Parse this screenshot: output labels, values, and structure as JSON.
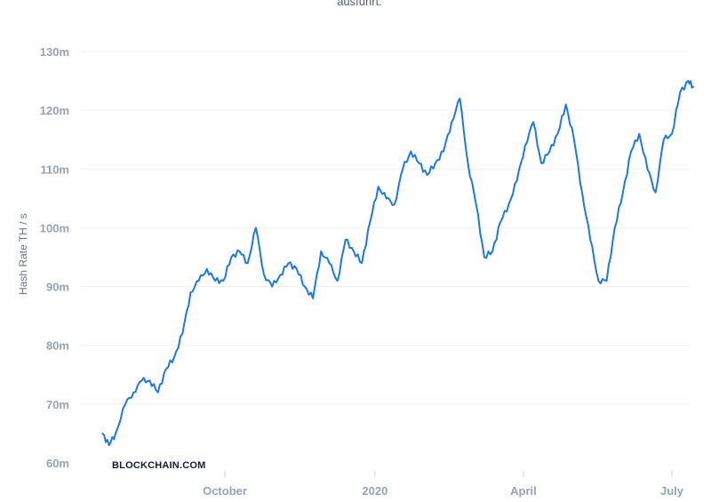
{
  "chart_data": {
    "type": "line",
    "subtitle": "ausführt.",
    "ylabel": "Hash Rate TH / s",
    "xlabel": "",
    "watermark": "BLOCKCHAIN.COM",
    "yticks": [
      "60m",
      "70m",
      "80m",
      "90m",
      "100m",
      "110m",
      "120m",
      "130m"
    ],
    "ylim": [
      60,
      130
    ],
    "xticks": [
      {
        "label": "October",
        "date": "2019-10-01"
      },
      {
        "label": "2020",
        "date": "2020-01-01"
      },
      {
        "label": "April",
        "date": "2020-04-01"
      },
      {
        "label": "July",
        "date": "2020-07-01"
      }
    ],
    "grid": true,
    "line_color": "#1f78e0",
    "series": [
      {
        "x": [
          "2019-07-18",
          "2019-07-22",
          "2019-07-26",
          "2019-08-01",
          "2019-08-06",
          "2019-08-11",
          "2019-08-16",
          "2019-08-21",
          "2019-08-26",
          "2019-08-31",
          "2019-09-05",
          "2019-09-10",
          "2019-09-15",
          "2019-09-20",
          "2019-09-25",
          "2019-09-30",
          "2019-10-05",
          "2019-10-10",
          "2019-10-15",
          "2019-10-20",
          "2019-10-25",
          "2019-10-30",
          "2019-11-04",
          "2019-11-09",
          "2019-11-14",
          "2019-11-19",
          "2019-11-24",
          "2019-11-29",
          "2019-12-04",
          "2019-12-09",
          "2019-12-14",
          "2019-12-19",
          "2019-12-24",
          "2019-12-29",
          "2020-01-03",
          "2020-01-08",
          "2020-01-13",
          "2020-01-18",
          "2020-01-23",
          "2020-01-28",
          "2020-02-02",
          "2020-02-07",
          "2020-02-12",
          "2020-02-17",
          "2020-02-22",
          "2020-02-27",
          "2020-03-03",
          "2020-03-08",
          "2020-03-13",
          "2020-03-18",
          "2020-03-23",
          "2020-03-28",
          "2020-04-02",
          "2020-04-07",
          "2020-04-12",
          "2020-04-17",
          "2020-04-22",
          "2020-04-27",
          "2020-05-02",
          "2020-05-07",
          "2020-05-12",
          "2020-05-17",
          "2020-05-22",
          "2020-05-27",
          "2020-06-01",
          "2020-06-06",
          "2020-06-11",
          "2020-06-16",
          "2020-06-21",
          "2020-06-26",
          "2020-07-01",
          "2020-07-06",
          "2020-07-11",
          "2020-07-14"
        ],
        "values": [
          65,
          63,
          65,
          70,
          72,
          74,
          74,
          72,
          76,
          78,
          82,
          89,
          91,
          93,
          91,
          91,
          95,
          96,
          94,
          100,
          92,
          90,
          92,
          94,
          93,
          90,
          88,
          96,
          94,
          91,
          98,
          96,
          94,
          101,
          107,
          105,
          104,
          110,
          113,
          111,
          109,
          111,
          113,
          118,
          122,
          111,
          104,
          95,
          96,
          101,
          104,
          108,
          114,
          118,
          111,
          113,
          116,
          121,
          115,
          106,
          98,
          91,
          91,
          100,
          106,
          113,
          116,
          110,
          106,
          115,
          116,
          123,
          125,
          124
        ]
      }
    ]
  }
}
